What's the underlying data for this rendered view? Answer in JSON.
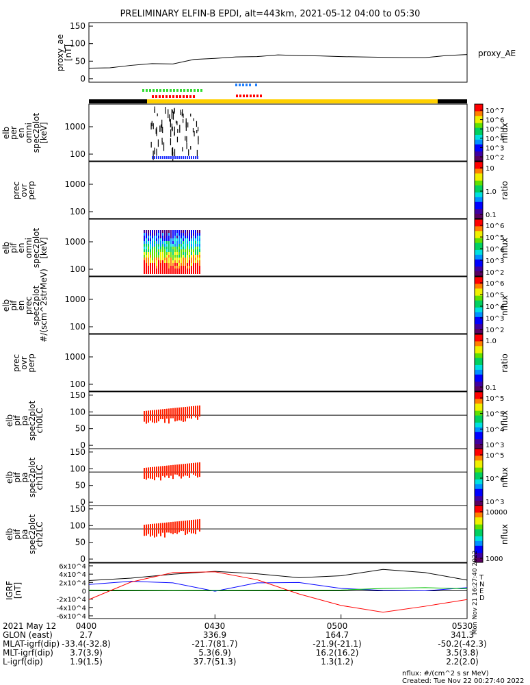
{
  "title": "PRELIMINARY ELFIN-B EPDI, alt=443km, 2021-05-12 04:00 to 05:30",
  "ae_panel": {
    "ylabel": "proxy_ae\n[nT]",
    "legend": "proxy_AE",
    "ticks": [
      "0",
      "50",
      "100",
      "150"
    ]
  },
  "panels": [
    {
      "ylabel": "elb\nper\nen\nomni\nspec2plot\n[keV]",
      "ticks": [
        "100",
        "1000"
      ],
      "cbar_ticks": [
        "10^2",
        "10^3",
        "10^4",
        "10^5",
        "10^6",
        "10^7"
      ],
      "cbar_label": "nflux"
    },
    {
      "ylabel": "prec\novr\nperp",
      "ticks": [
        "100",
        "1000"
      ],
      "cbar_ticks": [
        "0.1",
        "1.0",
        "10"
      ],
      "cbar_label": "ratio"
    },
    {
      "ylabel": "elb\npif\nen\nomni\nspec2plot\n[keV]",
      "ticks": [
        "100",
        "1000"
      ],
      "cbar_ticks": [
        "10^2",
        "10^3",
        "10^4",
        "10^5",
        "10^6"
      ],
      "cbar_label": "nflux"
    },
    {
      "ylabel": "elb\npif\nen\nprec\nspec2plot\n#/(scm^2strMeV)",
      "ticks": [
        "100",
        "1000"
      ],
      "cbar_ticks": [
        "10^2",
        "10^3",
        "10^4",
        "10^5",
        "10^6"
      ],
      "cbar_label": "nflux"
    },
    {
      "ylabel": "prec\novr\nperp",
      "ticks": [
        "100",
        "1000"
      ],
      "cbar_ticks": [
        "0.1",
        "1.0"
      ],
      "cbar_label": "ratio"
    },
    {
      "ylabel": "elb\npif\npa\nspec2plot\nch0LC",
      "ticks": [
        "0",
        "50",
        "100",
        "150"
      ],
      "cbar_ticks": [
        "10^3",
        "10^4",
        "10^5",
        "10^5"
      ],
      "cbar_label": "nflux"
    },
    {
      "ylabel": "elb\npif\npa\nspec2plot\nch1LC",
      "ticks": [
        "0",
        "50",
        "100",
        "150"
      ],
      "cbar_ticks": [
        "10^3",
        "10^4",
        "10^5"
      ],
      "cbar_label": "nflux"
    },
    {
      "ylabel": "elb\npif\npa\nspec2plot\nch2LC",
      "ticks": [
        "0",
        "50",
        "100",
        "150"
      ],
      "cbar_ticks": [
        "1000",
        "10000"
      ],
      "cbar_label": "nflux"
    }
  ],
  "igrf_panel": {
    "ylabel": "IGRF\n[nT]",
    "ticks": [
      "-6x10^4",
      "-4x10^4",
      "-2x10^4",
      "0",
      "2x10^4",
      "4x10^4",
      "6x10^4"
    ],
    "legend": [
      "T",
      "N",
      "E",
      "D"
    ],
    "colors": {
      "T": "#000000",
      "N": "#0000ff",
      "E": "#00c000",
      "D": "#ff0000"
    },
    "creation_stamp": "Mon Nov 21 16:27:40 2022"
  },
  "orbit_info": {
    "rows": [
      {
        "label": "2021 May 12",
        "values": [
          "0400",
          "0430",
          "0500",
          "0530"
        ]
      },
      {
        "label": "GLON (east)",
        "values": [
          "2.7",
          "336.9",
          "164.7",
          "341.3"
        ]
      },
      {
        "label": "MLAT-igrf(dip)",
        "values": [
          "-33.4(-32.8)",
          "-21.7(81.7)",
          "-21.9(-21.1)",
          "-50.2(-42.3)"
        ]
      },
      {
        "label": "MLT-igrf(dip)",
        "values": [
          "3.7(3.9)",
          "5.3(6.9)",
          "16.2(16.2)",
          "3.5(3.8)"
        ]
      },
      {
        "label": "L-igrf(dip)",
        "values": [
          "1.9(1.5)",
          "37.7(51.3)",
          "1.3(1.2)",
          "2.2(2.0)"
        ]
      }
    ]
  },
  "footer": {
    "units": "nflux: #/(cm^2 s sr MeV)",
    "created": "Created: Tue Nov 22 00:27:40 2022"
  },
  "chart_data": [
    {
      "type": "line",
      "title": "PRELIMINARY ELFIN-B EPDI, alt=443km, 2021-05-12 04:00 to 05:30",
      "ylabel": "proxy_ae [nT]",
      "ylim": [
        -10,
        160
      ],
      "x_minutes_after_0400": [
        0,
        5,
        10,
        15,
        20,
        25,
        30,
        35,
        40,
        45,
        50,
        55,
        60,
        65,
        70,
        75,
        80,
        85,
        90
      ],
      "series": [
        {
          "name": "proxy_AE",
          "color": "#000000",
          "values": [
            30,
            31,
            38,
            43,
            42,
            55,
            58,
            62,
            63,
            68,
            66,
            65,
            63,
            62,
            61,
            60,
            60,
            66,
            69
          ]
        }
      ]
    },
    {
      "type": "line",
      "ylabel": "IGRF [nT]",
      "ylim": [
        -70000,
        70000
      ],
      "x_minutes_after_0400": [
        0,
        10,
        20,
        30,
        40,
        50,
        60,
        70,
        80,
        90
      ],
      "series": [
        {
          "name": "T",
          "color": "#000000",
          "values": [
            26000,
            32000,
            42000,
            49000,
            43000,
            33000,
            38000,
            54000,
            46000,
            27000
          ]
        },
        {
          "name": "N",
          "color": "#0000ff",
          "values": [
            16000,
            24000,
            20000,
            -1000,
            20000,
            21000,
            6000,
            1000,
            0,
            8000
          ]
        },
        {
          "name": "E",
          "color": "#00c000",
          "values": [
            2000,
            1500,
            1000,
            1200,
            1500,
            1800,
            2000,
            6000,
            8000,
            5000
          ]
        },
        {
          "name": "D",
          "color": "#ff0000",
          "values": [
            -22000,
            22000,
            46000,
            48000,
            28000,
            -8000,
            -37000,
            -54000,
            -39000,
            -22000
          ]
        }
      ]
    }
  ]
}
